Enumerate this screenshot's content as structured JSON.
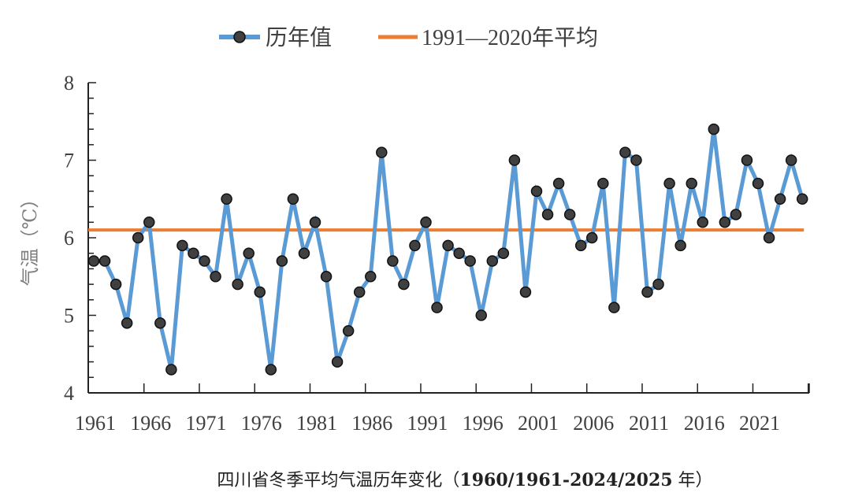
{
  "chart_data": {
    "type": "line",
    "title": "四川省冬季平均气温历年变化（1960/1961-2024/2025 年）",
    "title_parts": {
      "prefix": "四川省冬季平均气温历年变化（",
      "range": "1960/1961-2024/2025",
      "suffix": " 年）"
    },
    "xlabel": "",
    "ylabel": "气温（℃）",
    "ylim": [
      4,
      8
    ],
    "yticks": [
      "4",
      "5",
      "6",
      "7",
      "8"
    ],
    "xticks": [
      "1961",
      "1966",
      "1971",
      "1976",
      "1981",
      "1986",
      "1991",
      "1996",
      "2001",
      "2006",
      "2011",
      "2016",
      "2021"
    ],
    "legend_position": "top",
    "grid": false,
    "x": [
      1961,
      1962,
      1963,
      1964,
      1965,
      1966,
      1967,
      1968,
      1969,
      1970,
      1971,
      1972,
      1973,
      1974,
      1975,
      1976,
      1977,
      1978,
      1979,
      1980,
      1981,
      1982,
      1983,
      1984,
      1985,
      1986,
      1987,
      1988,
      1989,
      1990,
      1991,
      1992,
      1993,
      1994,
      1995,
      1996,
      1997,
      1998,
      1999,
      2000,
      2001,
      2002,
      2003,
      2004,
      2005,
      2006,
      2007,
      2008,
      2009,
      2010,
      2011,
      2012,
      2013,
      2014,
      2015,
      2016,
      2017,
      2018,
      2019,
      2020,
      2021,
      2022,
      2023,
      2024,
      2025
    ],
    "series": [
      {
        "name": "历年值",
        "color": "#5b9bd5",
        "marker_color": "#404040",
        "values": [
          5.7,
          5.7,
          5.4,
          4.9,
          6.0,
          6.2,
          4.9,
          4.3,
          5.9,
          5.8,
          5.7,
          5.5,
          6.5,
          5.4,
          5.8,
          5.3,
          4.3,
          5.7,
          6.5,
          5.8,
          6.2,
          5.5,
          4.4,
          4.8,
          5.3,
          5.5,
          7.1,
          5.7,
          5.4,
          5.9,
          6.2,
          5.1,
          5.9,
          5.8,
          5.7,
          5.0,
          5.7,
          5.8,
          7.0,
          5.3,
          6.6,
          6.3,
          6.7,
          6.3,
          5.9,
          6.0,
          6.7,
          5.1,
          7.1,
          7.0,
          5.3,
          5.4,
          6.7,
          5.9,
          6.7,
          6.2,
          7.4,
          6.2,
          6.3,
          7.0,
          6.7,
          6.0,
          6.5,
          7.0,
          6.5
        ]
      },
      {
        "name": "1991—2020年平均",
        "color": "#ed7d31",
        "value": 6.1
      }
    ]
  }
}
